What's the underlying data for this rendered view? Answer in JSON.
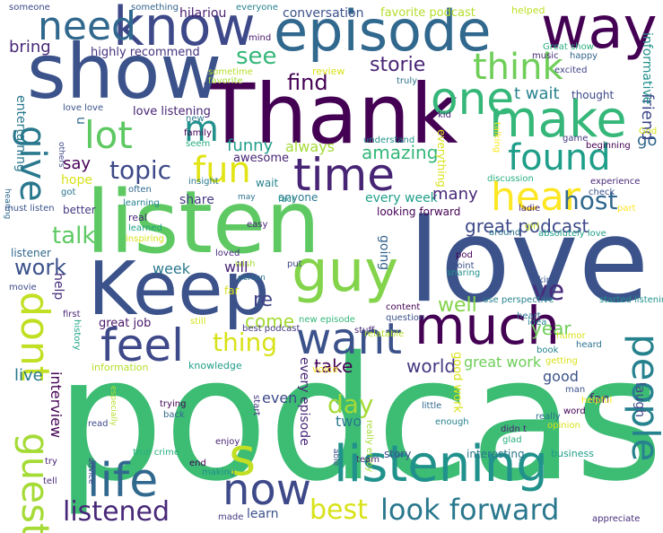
{
  "words": [
    {
      "text": "podcast",
      "color": "#3dbc74"
    },
    {
      "text": "love",
      "color": "#3b528b"
    },
    {
      "text": "listen",
      "color": "#5ec962"
    },
    {
      "text": "Thank",
      "color": "#440154"
    },
    {
      "text": "show",
      "color": "#3b528b"
    },
    {
      "text": "episode",
      "color": "#31688e"
    },
    {
      "text": "Keep",
      "color": "#3b528b"
    },
    {
      "text": "guy",
      "color": "#84d44b"
    },
    {
      "text": "know",
      "color": "#3e4989"
    },
    {
      "text": "way",
      "color": "#440154"
    },
    {
      "text": "make",
      "color": "#35b779"
    },
    {
      "text": "much",
      "color": "#440154"
    },
    {
      "text": "listening",
      "color": "#21918c"
    },
    {
      "text": "one",
      "color": "#35b779"
    },
    {
      "text": "need",
      "color": "#31688e"
    },
    {
      "text": "time",
      "color": "#482475"
    },
    {
      "text": "hear",
      "color": "#fde725"
    },
    {
      "text": "life",
      "color": "#31688e"
    },
    {
      "text": "now",
      "color": "#3e4989"
    },
    {
      "text": "want",
      "color": "#3b528b"
    },
    {
      "text": "feel",
      "color": "#3e4989"
    },
    {
      "text": "people",
      "color": "#26828e"
    },
    {
      "text": "dont",
      "color": "#c2df23"
    },
    {
      "text": "guest",
      "color": "#a5db36"
    },
    {
      "text": "give",
      "color": "#2a788e"
    },
    {
      "text": "lot",
      "color": "#5ec962"
    },
    {
      "text": "m",
      "color": "#21918c"
    },
    {
      "text": "fun",
      "color": "#e2e418"
    },
    {
      "text": "found",
      "color": "#1f9e89"
    },
    {
      "text": "think",
      "color": "#6ece58"
    },
    {
      "text": "s",
      "color": "#c2df23"
    },
    {
      "text": "look forward",
      "color": "#2a788e"
    },
    {
      "text": "listened",
      "color": "#482878"
    },
    {
      "text": "best",
      "color": "#d8e219"
    },
    {
      "text": "thing",
      "color": "#d8e219"
    },
    {
      "text": "host",
      "color": "#31688e"
    },
    {
      "text": "topic",
      "color": "#3e4989"
    },
    {
      "text": "storie",
      "color": "#482475"
    },
    {
      "text": "find",
      "color": "#440154"
    },
    {
      "text": "see",
      "color": "#35b779"
    },
    {
      "text": "work",
      "color": "#3b528b"
    },
    {
      "text": "talk",
      "color": "#5ec962"
    },
    {
      "text": "great podcast",
      "color": "#3e4989"
    },
    {
      "text": "ve",
      "color": "#472d7b"
    },
    {
      "text": "day",
      "color": "#a5db36"
    },
    {
      "text": "world",
      "color": "#443a83"
    },
    {
      "text": "take",
      "color": "#440154"
    },
    {
      "text": "come",
      "color": "#a5db36"
    },
    {
      "text": "re",
      "color": "#414487"
    },
    {
      "text": "well",
      "color": "#84d44b"
    },
    {
      "text": "year",
      "color": "#6ece58"
    },
    {
      "text": "funny",
      "color": "#1f9e89"
    },
    {
      "text": "amazing",
      "color": "#35b779"
    },
    {
      "text": "go",
      "color": "#31688e"
    },
    {
      "text": "friend",
      "color": "#3e4989"
    },
    {
      "text": "t wait",
      "color": "#26828e"
    },
    {
      "text": "say",
      "color": "#440154"
    },
    {
      "text": "bring",
      "color": "#482878"
    },
    {
      "text": "highly recommend",
      "color": "#46327e"
    },
    {
      "text": "love listening",
      "color": "#482475"
    },
    {
      "text": "informative",
      "color": "#21918c"
    },
    {
      "text": "entertaining",
      "color": "#2a788e"
    },
    {
      "text": "hilariou",
      "color": "#481f70"
    },
    {
      "text": "conversation",
      "color": "#3b528b"
    },
    {
      "text": "favorite podcast",
      "color": "#b5de2b"
    },
    {
      "text": "helped",
      "color": "#bddf26"
    },
    {
      "text": "something",
      "color": "#33638d"
    },
    {
      "text": "everyone",
      "color": "#26828e"
    },
    {
      "text": "someone",
      "color": "#3e4989"
    },
    {
      "text": "mind",
      "color": "#48186a"
    },
    {
      "text": "Great show",
      "color": "#29af7f"
    },
    {
      "text": "happy",
      "color": "#33638d"
    },
    {
      "text": "music",
      "color": "#482878"
    },
    {
      "text": "excited",
      "color": "#414487"
    },
    {
      "text": "truly",
      "color": "#2c728e"
    },
    {
      "text": "review",
      "color": "#d8e219"
    },
    {
      "text": "sometime",
      "color": "#b5de2b"
    },
    {
      "text": "favorite",
      "color": "#a5db36"
    },
    {
      "text": "thought",
      "color": "#3e4989"
    },
    {
      "text": "kid",
      "color": "#482475"
    },
    {
      "text": "u",
      "color": "#31688e"
    },
    {
      "text": "new",
      "color": "#2a788e"
    },
    {
      "text": "love love",
      "color": "#3b528b"
    },
    {
      "text": "family",
      "color": "#440154"
    },
    {
      "text": "seem",
      "color": "#29af7f"
    },
    {
      "text": "others",
      "color": "#3e4989"
    },
    {
      "text": "understand",
      "color": "#21918c"
    },
    {
      "text": "everything",
      "color": "#d8e219"
    },
    {
      "text": "talking",
      "color": "#fde725"
    },
    {
      "text": "game",
      "color": "#443a83"
    },
    {
      "text": "beginning",
      "color": "#440154"
    },
    {
      "text": "God",
      "color": "#d8e219"
    },
    {
      "text": "awesome",
      "color": "#482475"
    },
    {
      "text": "always",
      "color": "#a5db36"
    },
    {
      "text": "insight",
      "color": "#2a788e"
    },
    {
      "text": "often",
      "color": "#31688e"
    },
    {
      "text": "wait",
      "color": "#26828e"
    },
    {
      "text": "hope",
      "color": "#d8e219"
    },
    {
      "text": "got",
      "color": "#2c728e"
    },
    {
      "text": "share",
      "color": "#443a83"
    },
    {
      "text": "anyone",
      "color": "#2a788e"
    },
    {
      "text": "every week",
      "color": "#1f9e89"
    },
    {
      "text": "many",
      "color": "#482878"
    },
    {
      "text": "discussion",
      "color": "#29af7f"
    },
    {
      "text": "check",
      "color": "#3b528b"
    },
    {
      "text": "experience",
      "color": "#482878"
    },
    {
      "text": "hearing",
      "color": "#31688e"
    },
    {
      "text": "learning",
      "color": "#26828e"
    },
    {
      "text": "may",
      "color": "#2c728e"
    },
    {
      "text": "fact",
      "color": "#21918c"
    },
    {
      "text": "ladie",
      "color": "#482475"
    },
    {
      "text": "girl",
      "color": "#c2df23"
    },
    {
      "text": "part",
      "color": "#fde725"
    },
    {
      "text": "must listen",
      "color": "#3b528b"
    },
    {
      "text": "better",
      "color": "#443a83"
    },
    {
      "text": "real",
      "color": "#482878"
    },
    {
      "text": "learned",
      "color": "#1fa187"
    },
    {
      "text": "inspiring",
      "color": "#d8e219"
    },
    {
      "text": "easy",
      "color": "#482475"
    },
    {
      "text": "looking forward",
      "color": "#440154"
    },
    {
      "text": "around",
      "color": "#2c728e"
    },
    {
      "text": "absolutely love",
      "color": "#1f9e89"
    },
    {
      "text": "listener",
      "color": "#31688e"
    },
    {
      "text": "week",
      "color": "#2a788e"
    },
    {
      "text": "loved",
      "color": "#472d7b"
    },
    {
      "text": "wish",
      "color": "#a5db36"
    },
    {
      "text": "person",
      "color": "#2c728e"
    },
    {
      "text": "put",
      "color": "#3e4989"
    },
    {
      "text": "going",
      "color": "#33638d"
    },
    {
      "text": "pod",
      "color": "#440154"
    },
    {
      "text": "kind",
      "color": "#3b528b"
    },
    {
      "text": "will",
      "color": "#482475"
    },
    {
      "text": "far",
      "color": "#d8e219"
    },
    {
      "text": "sharing",
      "color": "#21918c"
    },
    {
      "text": "point",
      "color": "#3b528b"
    },
    {
      "text": "help",
      "color": "#472d7b"
    },
    {
      "text": "movie",
      "color": "#3e4989"
    },
    {
      "text": "first",
      "color": "#482475"
    },
    {
      "text": "use perspective",
      "color": "#26828e"
    },
    {
      "text": "content",
      "color": "#440154"
    },
    {
      "text": "question",
      "color": "#3b528b"
    },
    {
      "text": "stuff",
      "color": "#482878"
    },
    {
      "text": "heart",
      "color": "#2c728e"
    },
    {
      "text": "idea",
      "color": "#26828e"
    },
    {
      "text": "humor",
      "color": "#d8e219"
    },
    {
      "text": "started listening",
      "color": "#21918c"
    },
    {
      "text": "great job",
      "color": "#48186a"
    },
    {
      "text": "still",
      "color": "#d8e219"
    },
    {
      "text": "best podcast",
      "color": "#443a83"
    },
    {
      "text": "new episode",
      "color": "#35b779"
    },
    {
      "text": "relatable",
      "color": "#b5de2b"
    },
    {
      "text": "heard",
      "color": "#2c728e"
    },
    {
      "text": "book",
      "color": "#26828e"
    },
    {
      "text": "getting",
      "color": "#d8e219"
    },
    {
      "text": "history",
      "color": "#1fa187"
    },
    {
      "text": "live",
      "color": "#2a788e"
    },
    {
      "text": "information",
      "color": "#b5de2b"
    },
    {
      "text": "knowledge",
      "color": "#1f9e89"
    },
    {
      "text": "voice",
      "color": "#fde725"
    },
    {
      "text": "great work",
      "color": "#6ece58"
    },
    {
      "text": "laugh",
      "color": "#3e4989"
    },
    {
      "text": "fan",
      "color": "#482475"
    },
    {
      "text": "good",
      "color": "#3b528b"
    },
    {
      "text": "interview",
      "color": "#440154"
    },
    {
      "text": "every episode",
      "color": "#482878"
    },
    {
      "text": "good work",
      "color": "#d8e219"
    },
    {
      "text": "even",
      "color": "#3e4989"
    },
    {
      "text": "two",
      "color": "#2a788e"
    },
    {
      "text": "man",
      "color": "#3b528b"
    },
    {
      "text": "helpful",
      "color": "#fde725"
    },
    {
      "text": "word",
      "color": "#440154"
    },
    {
      "text": "really",
      "color": "#2c728e"
    },
    {
      "text": "opinion",
      "color": "#d8e219"
    },
    {
      "text": "little",
      "color": "#31688e"
    },
    {
      "text": "enough",
      "color": "#26828e"
    },
    {
      "text": "didn t",
      "color": "#482475"
    },
    {
      "text": "glad",
      "color": "#29af7f"
    },
    {
      "text": "trying",
      "color": "#440154"
    },
    {
      "text": "back",
      "color": "#31688e"
    },
    {
      "text": "start",
      "color": "#443a83"
    },
    {
      "text": "especially",
      "color": "#b5de2b"
    },
    {
      "text": "read",
      "color": "#3e4989"
    },
    {
      "text": "enjoy",
      "color": "#482475"
    },
    {
      "text": "story",
      "color": "#3b528b"
    },
    {
      "text": "interesting",
      "color": "#2a788e"
    },
    {
      "text": "business",
      "color": "#1f9e89"
    },
    {
      "text": "true crime",
      "color": "#29af7f"
    },
    {
      "text": "end",
      "color": "#440154"
    },
    {
      "text": "making",
      "color": "#21918c"
    },
    {
      "text": "really enjoy",
      "color": "#a5db36"
    },
    {
      "text": "able",
      "color": "#3b528b"
    },
    {
      "text": "team",
      "color": "#482475"
    },
    {
      "text": "try",
      "color": "#482475"
    },
    {
      "text": "advice",
      "color": "#3e4989"
    },
    {
      "text": "tell",
      "color": "#482878"
    },
    {
      "text": "made",
      "color": "#443a83"
    },
    {
      "text": "learn",
      "color": "#3b528b"
    },
    {
      "text": "appreciate",
      "color": "#472d7b"
    }
  ]
}
